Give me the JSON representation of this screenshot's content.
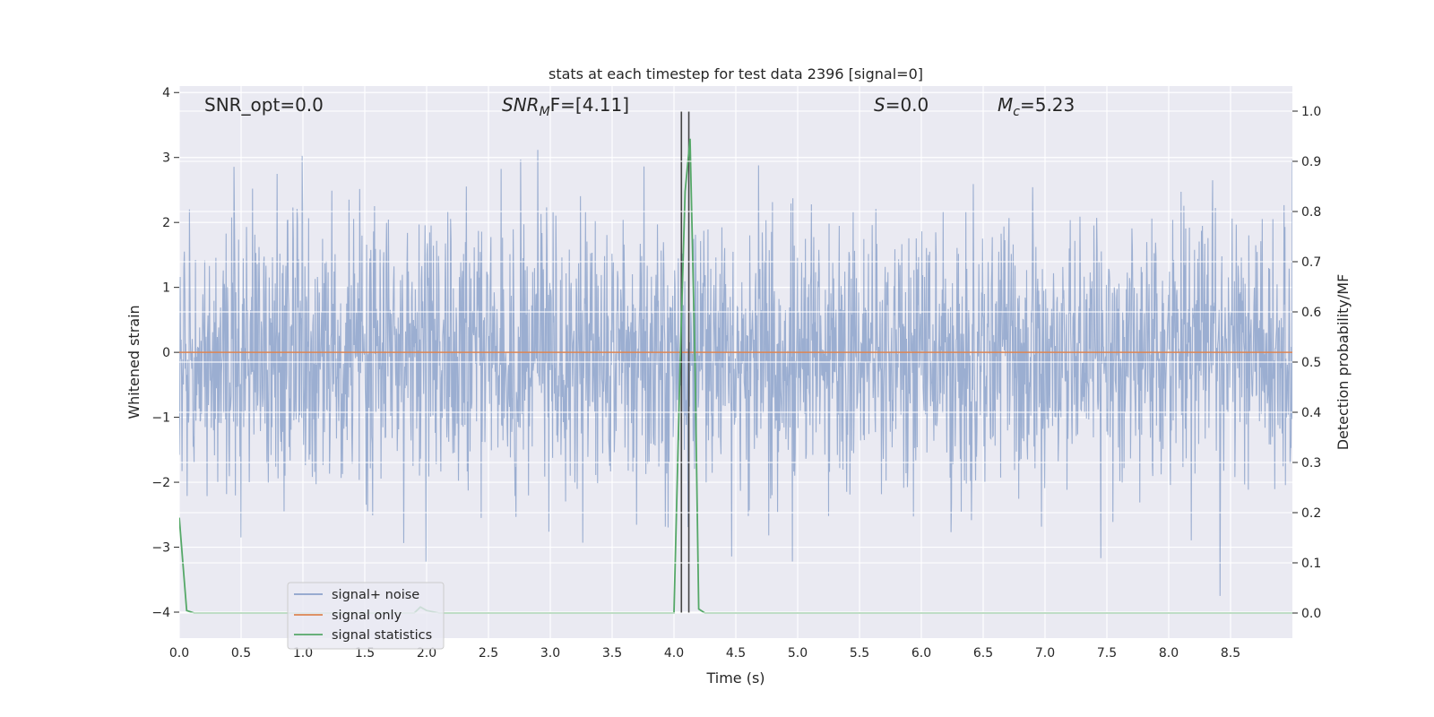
{
  "chart_data": {
    "type": "line",
    "title": "stats at each timestep for test data 2396 [signal=0]",
    "xlabel": "Time (s)",
    "ylabel_left": "Whitened strain",
    "ylabel_right": "Detection probability/MF",
    "xlim": [
      0.0,
      9.0
    ],
    "ylim_left": [
      -4.4,
      4.1
    ],
    "ylim_right": [
      -0.05,
      1.05
    ],
    "xticks": [
      "0.0",
      "0.5",
      "1.0",
      "1.5",
      "2.0",
      "2.5",
      "3.0",
      "3.5",
      "4.0",
      "4.5",
      "5.0",
      "5.5",
      "6.0",
      "6.5",
      "7.0",
      "7.5",
      "8.0",
      "8.5"
    ],
    "yticks_left": [
      "−4",
      "−3",
      "−2",
      "−1",
      "0",
      "1",
      "2",
      "3",
      "4"
    ],
    "yticks_right": [
      "0.0",
      "0.1",
      "0.2",
      "0.3",
      "0.4",
      "0.5",
      "0.6",
      "0.7",
      "0.8",
      "0.9",
      "1.0"
    ],
    "grid": true,
    "legend_position": "lower-left",
    "annotations": [
      {
        "prefix": "SNR_opt=0.0",
        "sub": "",
        "suffix": ""
      },
      {
        "prefix": "SNR",
        "sub": "M",
        "suffix": "F=[4.11]"
      },
      {
        "prefix": "S",
        "sub": "",
        "suffix": "=0.0"
      },
      {
        "prefix": "M",
        "sub": "c",
        "suffix": "=5.23"
      }
    ],
    "series": [
      {
        "name": "signal+ noise",
        "color": "#4c72b0",
        "axis": "left",
        "kind": "whitened strain noise, amplitude about ±1.5 with peaks to about ±3.5"
      },
      {
        "name": "signal only",
        "color": "#dd8452",
        "axis": "left",
        "values": [
          [
            0.0,
            0.0
          ],
          [
            9.0,
            0.0
          ]
        ]
      },
      {
        "name": "signal statistics",
        "color": "#55a868",
        "axis": "right",
        "values": [
          [
            0.0,
            0.19
          ],
          [
            0.06,
            0.005
          ],
          [
            0.12,
            0.0
          ],
          [
            0.5,
            0.0
          ],
          [
            1.0,
            0.0
          ],
          [
            1.5,
            0.0
          ],
          [
            1.9,
            0.0
          ],
          [
            1.95,
            0.012
          ],
          [
            2.0,
            0.005
          ],
          [
            2.1,
            0.0
          ],
          [
            2.5,
            0.0
          ],
          [
            3.0,
            0.0
          ],
          [
            3.5,
            0.0
          ],
          [
            4.0,
            0.0
          ],
          [
            4.05,
            0.5
          ],
          [
            4.09,
            0.84
          ],
          [
            4.13,
            0.945
          ],
          [
            4.17,
            0.5
          ],
          [
            4.2,
            0.008
          ],
          [
            4.25,
            0.0
          ],
          [
            5.0,
            0.0
          ],
          [
            6.0,
            0.0
          ],
          [
            7.0,
            0.0
          ],
          [
            8.0,
            0.0
          ],
          [
            9.0,
            0.0
          ]
        ]
      }
    ],
    "vertical_lines": [
      4.06,
      4.12
    ],
    "vertical_line_color": "#444444"
  }
}
